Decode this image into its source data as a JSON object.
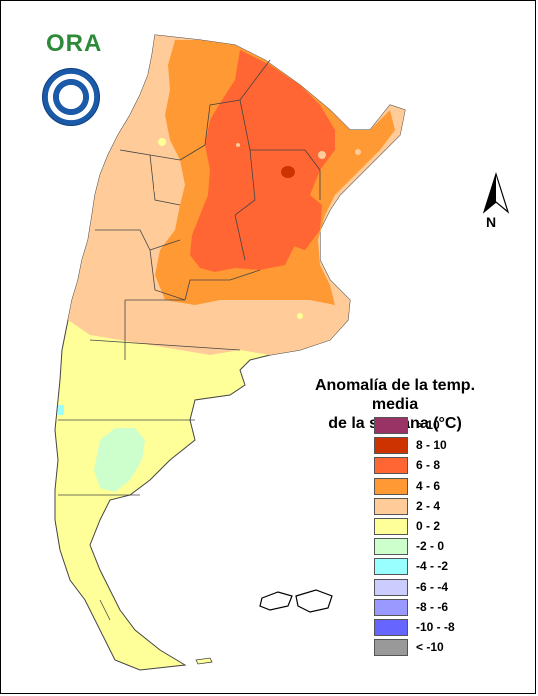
{
  "logo": {
    "text": "ORA"
  },
  "seal": {
    "name": "servicio-meteorologico-seal"
  },
  "north_arrow": {
    "label": "N"
  },
  "legend": {
    "title_line1": "Anomalía de la temp. media",
    "title_line2": "de la semana (°C)",
    "items": [
      {
        "label": "> 10",
        "color": "#993366"
      },
      {
        "label": "8 - 10",
        "color": "#cc3300"
      },
      {
        "label": "6 - 8",
        "color": "#ff6633"
      },
      {
        "label": "4 - 6",
        "color": "#ff9933"
      },
      {
        "label": "2 - 4",
        "color": "#ffcc99"
      },
      {
        "label": "0 - 2",
        "color": "#ffff99"
      },
      {
        "label": "-2 - 0",
        "color": "#ccffcc"
      },
      {
        "label": "-4 - -2",
        "color": "#99ffff"
      },
      {
        "label": "-6 - -4",
        "color": "#ccccff"
      },
      {
        "label": "-8 - -6",
        "color": "#9999ff"
      },
      {
        "label": "-10 - -8",
        "color": "#6666ff"
      },
      {
        "label": "< -10",
        "color": "#999999"
      }
    ]
  }
}
